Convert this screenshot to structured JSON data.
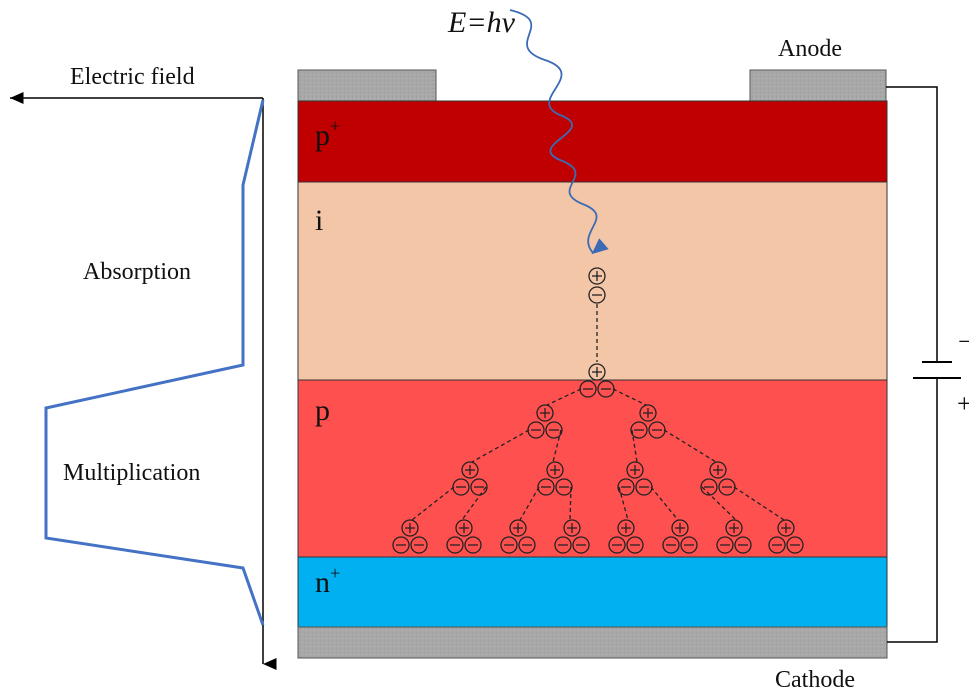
{
  "photon": {
    "label": "E=hν",
    "wave_color": "#3b6bb5"
  },
  "electrodes": {
    "anode": "Anode",
    "cathode": "Cathode",
    "color": "#a8a8a8"
  },
  "field": {
    "label": "Electric field",
    "profile_color": "#4472c4",
    "regions": [
      "Absorption",
      "Multiplication"
    ]
  },
  "layers": [
    {
      "id": "p-plus",
      "base": "p",
      "sup": "+",
      "color": "#c00000"
    },
    {
      "id": "intrinsic",
      "base": "i",
      "sup": "",
      "color": "#f4c6a8"
    },
    {
      "id": "p",
      "base": "p",
      "sup": "",
      "color": "#ff5050"
    },
    {
      "id": "n-plus",
      "base": "n",
      "sup": "+",
      "color": "#00b0f0"
    }
  ],
  "bias": {
    "minus": "−",
    "plus": "+"
  },
  "carriers": {
    "hole_symbol": "+",
    "electron_symbol": "−",
    "generations": [
      1,
      1,
      2,
      4,
      8
    ]
  }
}
